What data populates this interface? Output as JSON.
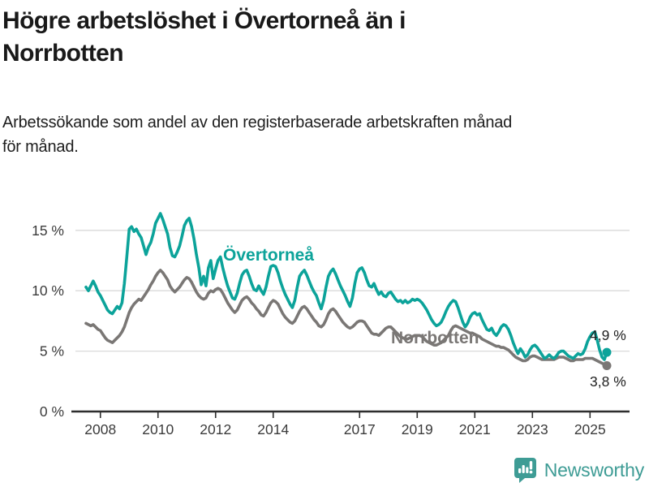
{
  "header": {
    "title": "Högre arbetslöshet i Övertorneå än i\nNorrbotten",
    "subtitle": "Arbetssökande som andel av den registerbaserade arbetskraften månad\nför månad."
  },
  "footer": {
    "brand": "Newsworthy",
    "logo_icon": "bar-chart-speech-bubble"
  },
  "colors": {
    "overtornea": "#0ca39a",
    "norrbotten": "#7a7775",
    "grid": "#dadada",
    "axis": "#2d2d2d",
    "tick_text": "#3b3b3b",
    "value_text": "#1f1f1f",
    "brand": "#3e9c95",
    "title_text": "#191919"
  },
  "chart_data": {
    "type": "line",
    "title": "Högre arbetslöshet i Övertorneå än i Norrbotten",
    "xlabel": "",
    "ylabel": "",
    "unit": "%",
    "period": "monthly",
    "x_start": "2007-07",
    "x_end": "2025-08",
    "ylim": [
      0,
      17
    ],
    "grid": "horizontal",
    "x_tick_labels": [
      "2008",
      "2010",
      "2012",
      "2014",
      "2017",
      "2019",
      "2021",
      "2023",
      "2025"
    ],
    "y_ticks": [
      {
        "value": 0,
        "label": "0 %"
      },
      {
        "value": 5,
        "label": "5 %"
      },
      {
        "value": 10,
        "label": "10 %"
      },
      {
        "value": 15,
        "label": "15 %"
      }
    ],
    "series": [
      {
        "name": "Övertorneå",
        "color": "#0ca39a",
        "end_label": "4,9 %",
        "values": [
          10.3,
          10.0,
          10.4,
          10.8,
          10.4,
          9.9,
          9.6,
          9.2,
          8.8,
          8.4,
          8.2,
          8.1,
          8.4,
          8.7,
          8.5,
          9.0,
          10.6,
          12.8,
          15.1,
          15.3,
          14.9,
          15.1,
          14.7,
          14.4,
          13.7,
          13.0,
          13.6,
          14.0,
          14.7,
          15.6,
          16.0,
          16.4,
          15.9,
          15.3,
          14.7,
          13.6,
          12.9,
          12.8,
          13.2,
          13.7,
          14.5,
          15.4,
          15.8,
          16.0,
          15.3,
          14.3,
          13.0,
          11.9,
          10.5,
          11.2,
          10.4,
          11.9,
          12.5,
          11.0,
          11.8,
          12.5,
          12.8,
          11.9,
          11.1,
          10.4,
          9.9,
          9.4,
          9.3,
          9.8,
          10.6,
          11.3,
          11.6,
          11.7,
          11.2,
          10.6,
          10.1,
          10.0,
          10.4,
          10.0,
          9.7,
          10.3,
          11.2,
          12.0,
          12.1,
          12.0,
          11.5,
          10.8,
          10.2,
          9.7,
          9.3,
          8.9,
          8.6,
          9.2,
          10.3,
          11.2,
          11.5,
          11.7,
          11.3,
          10.8,
          10.3,
          9.9,
          9.6,
          9.0,
          8.5,
          9.2,
          10.3,
          11.2,
          11.6,
          11.8,
          11.4,
          10.9,
          10.4,
          10.0,
          9.6,
          9.1,
          8.7,
          9.4,
          10.6,
          11.5,
          11.8,
          11.9,
          11.5,
          10.9,
          10.4,
          10.3,
          10.6,
          10.1,
          9.7,
          9.9,
          9.6,
          9.5,
          9.8,
          9.9,
          9.6,
          9.3,
          9.1,
          9.2,
          9.0,
          9.2,
          9.0,
          9.1,
          9.3,
          9.2,
          9.3,
          9.2,
          9.0,
          8.7,
          8.4,
          8.0,
          7.6,
          7.3,
          7.1,
          7.2,
          7.4,
          7.8,
          8.3,
          8.7,
          9.0,
          9.2,
          9.1,
          8.6,
          8.0,
          7.4,
          7.0,
          7.3,
          7.8,
          8.1,
          8.2,
          8.0,
          8.1,
          7.6,
          7.2,
          6.8,
          6.7,
          6.9,
          6.5,
          6.3,
          6.6,
          7.0,
          7.2,
          7.1,
          6.8,
          6.3,
          5.7,
          5.2,
          4.8,
          5.2,
          4.9,
          4.5,
          4.7,
          5.1,
          5.4,
          5.5,
          5.3,
          5.0,
          4.7,
          4.4,
          4.5,
          4.7,
          4.5,
          4.4,
          4.6,
          4.9,
          5.0,
          5.0,
          4.8,
          4.6,
          4.5,
          4.4,
          4.6,
          4.8,
          4.7,
          4.8,
          5.2,
          5.8,
          6.2,
          6.5,
          6.6,
          5.9,
          5.1,
          4.5,
          4.3,
          4.9
        ]
      },
      {
        "name": "Norrbotten",
        "color": "#7a7775",
        "end_label": "3,8 %",
        "values": [
          7.3,
          7.2,
          7.1,
          7.2,
          7.0,
          6.8,
          6.7,
          6.4,
          6.1,
          5.9,
          5.8,
          5.7,
          5.9,
          6.1,
          6.3,
          6.6,
          7.0,
          7.6,
          8.2,
          8.6,
          8.9,
          9.1,
          9.3,
          9.2,
          9.5,
          9.8,
          10.1,
          10.5,
          10.8,
          11.2,
          11.5,
          11.7,
          11.5,
          11.2,
          10.9,
          10.4,
          10.1,
          9.9,
          10.1,
          10.3,
          10.6,
          10.9,
          11.1,
          11.0,
          10.7,
          10.3,
          9.9,
          9.6,
          9.4,
          9.3,
          9.4,
          9.8,
          10.0,
          9.9,
          10.1,
          10.2,
          10.1,
          9.8,
          9.4,
          9.0,
          8.7,
          8.4,
          8.2,
          8.4,
          8.8,
          9.2,
          9.4,
          9.5,
          9.3,
          9.0,
          8.8,
          8.5,
          8.3,
          8.0,
          7.9,
          8.2,
          8.6,
          9.0,
          9.2,
          9.1,
          8.9,
          8.5,
          8.1,
          7.8,
          7.6,
          7.4,
          7.3,
          7.5,
          7.9,
          8.3,
          8.6,
          8.7,
          8.5,
          8.2,
          7.9,
          7.6,
          7.4,
          7.1,
          7.0,
          7.2,
          7.6,
          8.1,
          8.4,
          8.5,
          8.3,
          8.0,
          7.7,
          7.4,
          7.2,
          7.0,
          6.9,
          7.0,
          7.2,
          7.4,
          7.5,
          7.5,
          7.4,
          7.1,
          6.8,
          6.5,
          6.4,
          6.4,
          6.3,
          6.5,
          6.7,
          6.9,
          7.0,
          7.0,
          6.8,
          6.6,
          6.4,
          6.2,
          6.1,
          6.0,
          6.0,
          6.1,
          6.2,
          6.3,
          6.3,
          6.3,
          6.2,
          6.0,
          5.8,
          5.7,
          5.6,
          5.5,
          5.5,
          5.6,
          5.7,
          5.9,
          6.1,
          6.3,
          6.7,
          7.0,
          7.1,
          7.0,
          6.9,
          6.8,
          6.7,
          6.6,
          6.5,
          6.5,
          6.4,
          6.3,
          6.2,
          6.0,
          5.9,
          5.8,
          5.7,
          5.6,
          5.5,
          5.4,
          5.4,
          5.3,
          5.3,
          5.2,
          5.1,
          4.9,
          4.7,
          4.5,
          4.4,
          4.3,
          4.2,
          4.2,
          4.3,
          4.5,
          4.6,
          4.6,
          4.5,
          4.4,
          4.3,
          4.3,
          4.3,
          4.3,
          4.3,
          4.3,
          4.4,
          4.5,
          4.5,
          4.5,
          4.4,
          4.3,
          4.2,
          4.2,
          4.3,
          4.3,
          4.3,
          4.3,
          4.4,
          4.4,
          4.4,
          4.4,
          4.3,
          4.2,
          4.1,
          4.0,
          3.9,
          3.8
        ]
      }
    ]
  }
}
